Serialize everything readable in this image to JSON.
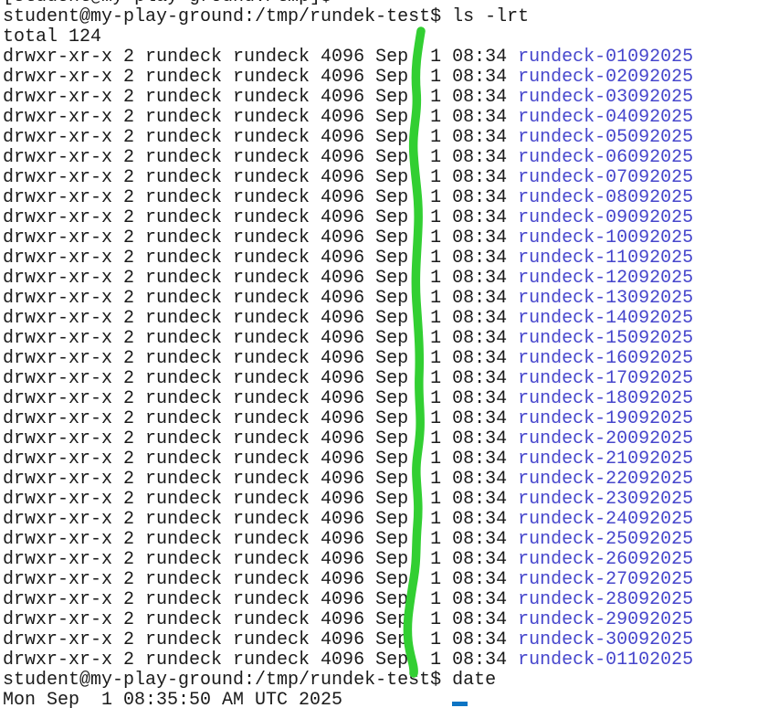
{
  "colors": {
    "background": "#ffffff",
    "text": "#1a1a1a",
    "directory_blue": "#4646cc",
    "annotation_green": "#32cf32",
    "cursor_blue": "#0d74c4"
  },
  "terminal": {
    "clipped_top_line": "[student@my-play-ground:/tmp]$",
    "prompt_ls": "student@my-play-ground:/tmp/rundek-test$ ls -lrt",
    "total_line": "total 124",
    "listing_prefix": "drwxr-xr-x 2 rundeck rundeck 4096 Sep  1 08:34 ",
    "directories": [
      "rundeck-01092025",
      "rundeck-02092025",
      "rundeck-03092025",
      "rundeck-04092025",
      "rundeck-05092025",
      "rundeck-06092025",
      "rundeck-07092025",
      "rundeck-08092025",
      "rundeck-09092025",
      "rundeck-10092025",
      "rundeck-11092025",
      "rundeck-12092025",
      "rundeck-13092025",
      "rundeck-14092025",
      "rundeck-15092025",
      "rundeck-16092025",
      "rundeck-17092025",
      "rundeck-18092025",
      "rundeck-19092025",
      "rundeck-20092025",
      "rundeck-21092025",
      "rundeck-22092025",
      "rundeck-23092025",
      "rundeck-24092025",
      "rundeck-25092025",
      "rundeck-26092025",
      "rundeck-27092025",
      "rundeck-28092025",
      "rundeck-29092025",
      "rundeck-30092025",
      "rundeck-01102025"
    ],
    "prompt_date": "student@my-play-ground:/tmp/rundek-test$ date",
    "date_output": "Mon Sep  1 08:35:50 AM UTC 2025"
  },
  "annotation": {
    "type": "hand-drawn-vertical-wavy-line",
    "color": "#32cf32"
  },
  "cursor": {
    "style": "underline",
    "color": "#0d74c4"
  }
}
